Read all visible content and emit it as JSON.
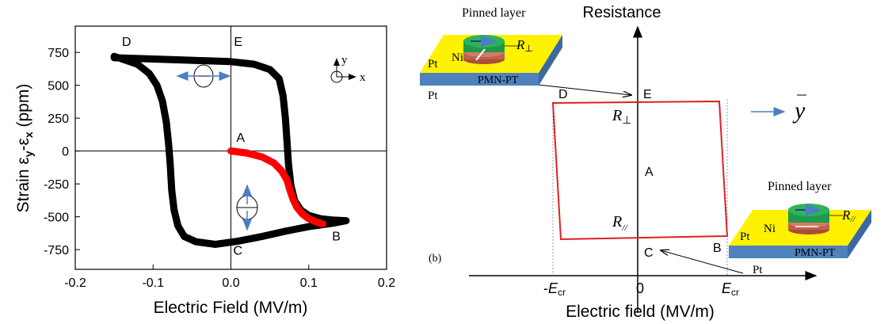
{
  "chart_data": [
    {
      "type": "line",
      "xlabel": "Electric Field (MV/m)",
      "ylabel_parts": {
        "main": "Strain ε",
        "sub1": "y",
        "mid": "-ε",
        "sub2": "x",
        "unit": " (ppm)"
      },
      "xlim": [
        -0.2,
        0.2
      ],
      "ylim": [
        -900,
        950
      ],
      "xticks": [
        -0.2,
        -0.1,
        0.0,
        0.1,
        0.2
      ],
      "xtick_labels": [
        "-0.2",
        "-0.1",
        "0.0",
        "0.1",
        "0.2"
      ],
      "yticks": [
        750,
        500,
        250,
        0,
        -250,
        -500,
        -750
      ],
      "ytick_labels": [
        "750",
        "500",
        "250",
        "0",
        "-250",
        "-500",
        "-750"
      ],
      "grid": false,
      "series": [
        {
          "color": "#000000",
          "x": [
            0.148,
            0.13,
            0.1,
            0.07,
            0.04,
            0.01,
            -0.02,
            -0.045,
            -0.06,
            -0.068,
            -0.073,
            -0.076,
            -0.078,
            -0.08,
            -0.083,
            -0.088,
            -0.095,
            -0.105,
            -0.12,
            -0.15,
            -0.15,
            -0.1,
            -0.05,
            0.0,
            0.03,
            0.05,
            0.062,
            0.067,
            0.07,
            0.072,
            0.074,
            0.077,
            0.082,
            0.09,
            0.1,
            0.115,
            0.13,
            0.148
          ],
          "y": [
            -530,
            -550,
            -575,
            -610,
            -650,
            -685,
            -710,
            -690,
            -650,
            -570,
            -450,
            -300,
            -100,
            50,
            220,
            380,
            500,
            590,
            660,
            720,
            710,
            700,
            690,
            680,
            660,
            620,
            550,
            420,
            250,
            80,
            -100,
            -260,
            -380,
            -450,
            -490,
            -515,
            -525,
            -530
          ]
        },
        {
          "color": "#ff0000",
          "x": [
            0.0,
            0.02,
            0.04,
            0.055,
            0.065,
            0.072,
            0.076,
            0.08,
            0.085,
            0.092,
            0.1,
            0.11,
            0.118
          ],
          "y": [
            0,
            -15,
            -45,
            -90,
            -150,
            -220,
            -300,
            -370,
            -430,
            -480,
            -515,
            -540,
            -555
          ]
        }
      ],
      "point_labels": [
        {
          "text": "D",
          "x": -0.14,
          "y": 800
        },
        {
          "text": "E",
          "x": 0.004,
          "y": 800
        },
        {
          "text": "A",
          "x": 0.007,
          "y": 70
        },
        {
          "text": "C",
          "x": 0.003,
          "y": -790
        },
        {
          "text": "B",
          "x": 0.13,
          "y": -680
        }
      ],
      "axes_legend": {
        "y": "y",
        "x": "x"
      }
    },
    {
      "type": "line",
      "ylabel": "Resistance",
      "xlabel": "Electric field (MV/m)",
      "xtick_labels": [
        {
          "pre": "-",
          "italic": "E",
          "sub": "cr"
        },
        {
          "text": "0"
        },
        {
          "pre": "",
          "italic": "E",
          "sub": "cr"
        }
      ],
      "series": [
        {
          "color": "#ff0000",
          "shape": "hysteresis-loop",
          "corners": [
            "D",
            "E",
            "B",
            "C"
          ]
        }
      ],
      "point_labels": [
        "D",
        "E",
        "A",
        "B",
        "C"
      ],
      "resistance_labels": {
        "high_sub": "⊥",
        "low_sub": "//",
        "letter": "R"
      },
      "panel_label": "(b)",
      "y_arrow_label": "y",
      "insets": {
        "top": {
          "title": "Pinned layer",
          "ni": "Ni",
          "pt_top": "Pt",
          "pt_bottom": "Pt",
          "substrate": "PMN-PT",
          "r_letter": "R",
          "r_sub": "⊥"
        },
        "bottom": {
          "title": "Pinned layer",
          "ni": "Ni",
          "pt_top": "Pt",
          "pt_bottom": "Pt",
          "substrate": "PMN-PT",
          "r_letter": "R",
          "r_sub": "//"
        }
      },
      "colors": {
        "pt": "#fff200",
        "substrate": "#4f81bd",
        "magnet": "#1e9a4a",
        "ni": "#c0604f",
        "arrow": "#4a7fc1"
      }
    }
  ]
}
